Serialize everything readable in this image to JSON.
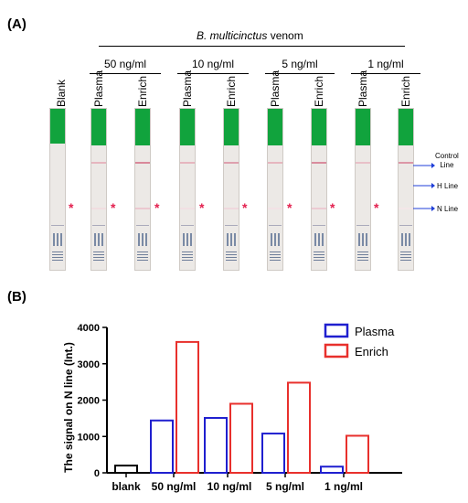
{
  "panel_a": {
    "label": "(A)",
    "venom_title_italic": "B. multicinctus",
    "venom_title_rest": " venom",
    "strip_labels": [
      "Blank",
      "Plasma",
      "Enrich",
      "Plasma",
      "Enrich",
      "Plasma",
      "Enrich",
      "Plasma",
      "Enrich"
    ],
    "concentrations": [
      "50 ng/ml",
      "10 ng/ml",
      "5 ng/ml",
      "1 ng/ml"
    ],
    "star_symbol": "*",
    "annotations": {
      "control": "Control\nLine",
      "h": "H Line",
      "n": "N Line"
    },
    "pad_color": "#11a33d",
    "star_color": "#e3214f"
  },
  "panel_b": {
    "label": "(B)"
  },
  "chart_data": {
    "type": "bar",
    "ylabel": "The signal on N line (Int.)",
    "ylim": [
      0,
      4000
    ],
    "yticks": [
      0,
      1000,
      2000,
      3000,
      4000
    ],
    "categories": [
      "blank",
      "50 ng/ml",
      "10 ng/ml",
      "5 ng/ml",
      "1 ng/ml"
    ],
    "blank_value": 200,
    "series": [
      {
        "name": "Plasma",
        "color": "#1f1fcf",
        "values": [
          null,
          1440,
          1510,
          1080,
          170
        ]
      },
      {
        "name": "Enrich",
        "color": "#e8302c",
        "values": [
          null,
          3600,
          1900,
          2480,
          1020
        ]
      }
    ],
    "legend_position": "top-right"
  }
}
